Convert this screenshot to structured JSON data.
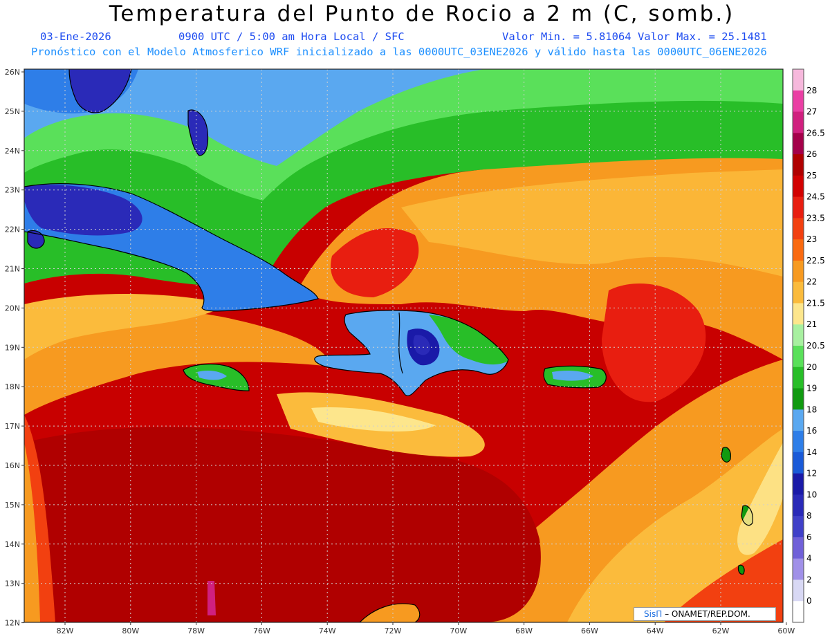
{
  "header": {
    "title": "Temperatura del Punto de Rocio a 2 m (C, somb.)",
    "date": "03-Ene-2026",
    "time": "0900 UTC / 5:00 am Hora Local / SFC",
    "range": "Valor Min. = 5.81064  Valor Max. = 25.1481",
    "model_line": "Pronóstico con el Modelo Atmosferico WRF inicializado a las 0000UTC_03ENE2026 y válido hasta las  0000UTC_06ENE2026"
  },
  "lat_labels": [
    "26N",
    "25N",
    "24N",
    "23N",
    "22N",
    "21N",
    "20N",
    "19N",
    "18N",
    "17N",
    "16N",
    "15N",
    "14N",
    "13N",
    "12N"
  ],
  "lon_labels": [
    "82W",
    "80W",
    "78W",
    "76W",
    "74W",
    "72W",
    "70W",
    "68W",
    "66W",
    "64W",
    "62W",
    "60W"
  ],
  "colorbar": {
    "labels": [
      "28",
      "27",
      "26.5",
      "26",
      "25",
      "24.5",
      "23.5",
      "23",
      "22.5",
      "22",
      "21.5",
      "21",
      "20.5",
      "20",
      "19",
      "18",
      "16",
      "14",
      "12",
      "10",
      "8",
      "6",
      "4",
      "2",
      "0"
    ],
    "colors": [
      "#f6b8dc",
      "#ea3fa4",
      "#d0207f",
      "#a4004a",
      "#b00000",
      "#d20000",
      "#e81e10",
      "#f24010",
      "#fa6a10",
      "#f79a20",
      "#fbbb3c",
      "#fde68c",
      "#a8f0a0",
      "#5ae05a",
      "#28be28",
      "#109a10",
      "#5aa8f0",
      "#2e7ee8",
      "#1a5ad8",
      "#1a1aa8",
      "#2a2ab8",
      "#4040c8",
      "#7060d8",
      "#a090e8",
      "#d8d8f4",
      "#ffffff"
    ]
  },
  "credit": {
    "brand": "SisΠ",
    "text": "– ONAMET/REP.DOM."
  },
  "colors": {
    "subtitle_blue": "#1e4cf0",
    "subtitle_cyan": "#1e90ff",
    "frame": "#222222"
  }
}
